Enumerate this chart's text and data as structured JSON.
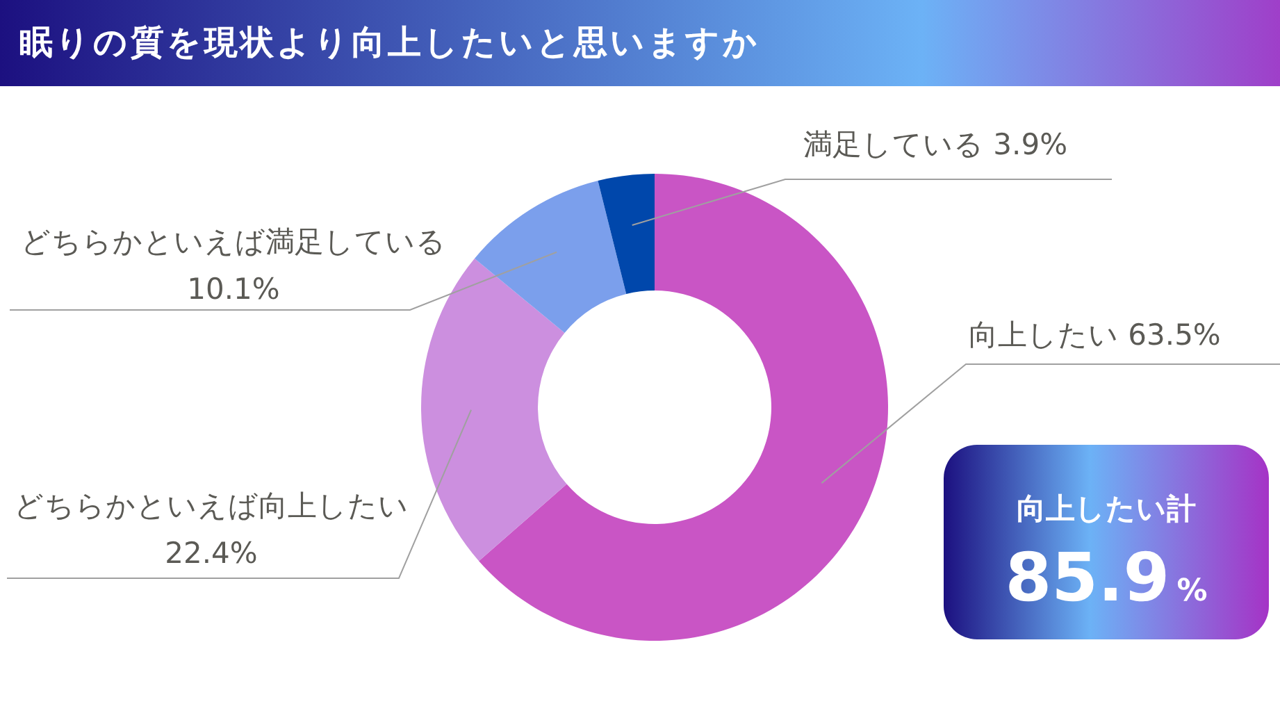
{
  "chart_data": {
    "type": "donut",
    "title": "眠りの質を現状より向上したいと思いますか",
    "categories": [
      "向上したい",
      "どちらかといえば向上したい",
      "どちらかといえば満足している",
      "満足している"
    ],
    "values": [
      63.5,
      22.4,
      10.1,
      3.9
    ],
    "colors": [
      "#c955c5",
      "#cc8fdf",
      "#7b9fec",
      "#0047ab"
    ],
    "value_labels": [
      "63.5%",
      "22.4%",
      "10.1%",
      "3.9%"
    ],
    "legend": false,
    "annotations": [
      "向上したい計",
      "85.9%"
    ]
  }
}
